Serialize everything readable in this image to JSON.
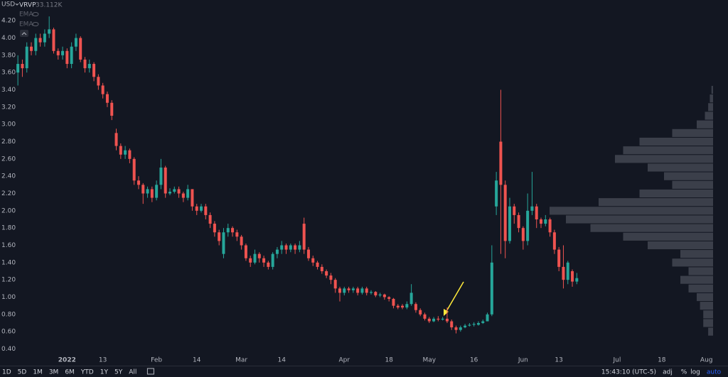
{
  "chart_data": {
    "type": "candlestick",
    "currency": "USD",
    "indicators": [
      {
        "name": "VRVP",
        "value_label": "33.112K"
      },
      {
        "name": "EMA"
      },
      {
        "name": "EMA"
      }
    ],
    "up_color": "#26a69a",
    "down_color": "#ef5350",
    "open": [
      3.6,
      3.7,
      3.65,
      3.9,
      3.85,
      4.0,
      3.95,
      4.05,
      4.1,
      3.85,
      3.8,
      3.85,
      3.7,
      3.9,
      4.0,
      3.75,
      3.65,
      3.7,
      3.55,
      3.45,
      3.35,
      3.25,
      2.9,
      2.75,
      2.65,
      2.7,
      2.6,
      2.35,
      2.3,
      2.2,
      2.25,
      2.15,
      2.3,
      2.5,
      2.2,
      2.22,
      2.25,
      2.2,
      2.15,
      2.25,
      2.05,
      2.0,
      2.05,
      1.95,
      1.85,
      1.75,
      1.5,
      1.75,
      1.8,
      1.75,
      1.7,
      1.6,
      1.45,
      1.4,
      1.5,
      1.45,
      1.4,
      1.35,
      1.5,
      1.55,
      1.6,
      1.55,
      1.6,
      1.55,
      1.85,
      1.55,
      1.45,
      1.4,
      1.35,
      1.3,
      1.25,
      1.2,
      1.1,
      1.05,
      1.1,
      1.08,
      1.1,
      1.05,
      1.1,
      1.05,
      1.06,
      1.02,
      1.03,
      1.0,
      0.98,
      0.9,
      0.9,
      0.88,
      0.92,
      0.92,
      0.85,
      0.8,
      0.75,
      0.72,
      0.75,
      0.74,
      0.75,
      0.72,
      0.65,
      0.62,
      0.65,
      0.67,
      0.68,
      0.68,
      0.7,
      0.72,
      0.8,
      2.05,
      2.8,
      2.3,
      1.65,
      2.05,
      1.95,
      1.8,
      1.65,
      2.0,
      2.05,
      1.9,
      1.85,
      1.9,
      1.75,
      1.55,
      1.35,
      1.2,
      1.3,
      1.18
    ],
    "high": [
      3.8,
      3.75,
      3.95,
      3.95,
      4.05,
      4.05,
      4.1,
      4.25,
      4.12,
      3.88,
      3.9,
      3.88,
      3.95,
      4.05,
      4.02,
      3.78,
      3.75,
      3.72,
      3.58,
      3.48,
      3.38,
      3.28,
      2.95,
      2.78,
      2.75,
      2.72,
      2.62,
      2.4,
      2.32,
      2.28,
      2.28,
      2.35,
      2.6,
      2.52,
      2.26,
      2.28,
      2.28,
      2.22,
      2.3,
      2.25,
      2.08,
      2.08,
      2.08,
      1.98,
      1.88,
      1.78,
      1.8,
      1.85,
      1.82,
      1.78,
      1.72,
      1.62,
      1.48,
      1.55,
      1.52,
      1.48,
      1.42,
      1.52,
      1.58,
      1.65,
      1.62,
      1.62,
      1.62,
      1.65,
      1.92,
      1.58,
      1.48,
      1.42,
      1.38,
      1.32,
      1.28,
      1.22,
      1.12,
      1.12,
      1.12,
      1.12,
      1.12,
      1.12,
      1.12,
      1.08,
      1.07,
      1.05,
      1.04,
      1.01,
      0.99,
      0.92,
      0.92,
      0.95,
      1.15,
      0.94,
      0.87,
      0.82,
      0.77,
      0.77,
      0.78,
      0.77,
      0.88,
      0.74,
      0.67,
      0.67,
      0.69,
      0.7,
      0.71,
      0.72,
      0.74,
      0.82,
      1.6,
      2.45,
      3.4,
      2.35,
      2.15,
      2.08,
      1.98,
      1.82,
      2.2,
      2.45,
      2.08,
      1.92,
      1.95,
      1.92,
      1.78,
      1.58,
      1.6,
      1.42,
      1.32,
      1.28
    ],
    "low": [
      3.45,
      3.55,
      3.6,
      3.8,
      3.8,
      3.9,
      3.9,
      4.0,
      3.82,
      3.75,
      3.75,
      3.65,
      3.65,
      3.85,
      3.72,
      3.6,
      3.6,
      3.5,
      3.4,
      3.3,
      3.2,
      3.05,
      2.7,
      2.6,
      2.6,
      2.55,
      2.3,
      2.25,
      2.08,
      2.15,
      2.1,
      2.12,
      2.25,
      2.15,
      2.18,
      2.2,
      2.15,
      2.1,
      2.12,
      2.0,
      1.95,
      1.98,
      1.9,
      1.8,
      1.7,
      1.6,
      1.45,
      1.7,
      1.7,
      1.65,
      1.55,
      1.42,
      1.35,
      1.38,
      1.4,
      1.35,
      1.32,
      1.32,
      1.45,
      1.5,
      1.5,
      1.52,
      1.5,
      1.52,
      1.5,
      1.42,
      1.36,
      1.32,
      1.27,
      1.22,
      1.15,
      1.05,
      0.95,
      1.02,
      1.05,
      1.05,
      1.02,
      1.03,
      1.02,
      1.03,
      1.0,
      1.0,
      0.97,
      0.95,
      0.87,
      0.86,
      0.86,
      0.86,
      0.9,
      0.82,
      0.78,
      0.73,
      0.7,
      0.71,
      0.72,
      0.73,
      0.7,
      0.62,
      0.58,
      0.6,
      0.64,
      0.66,
      0.66,
      0.67,
      0.69,
      0.72,
      0.78,
      1.95,
      1.5,
      1.45,
      1.62,
      1.85,
      1.75,
      1.55,
      1.6,
      1.95,
      1.8,
      1.8,
      1.82,
      1.7,
      1.5,
      1.3,
      1.1,
      1.15,
      1.12,
      1.15
    ],
    "close": [
      3.7,
      3.65,
      3.9,
      3.85,
      4.0,
      3.95,
      4.05,
      4.1,
      3.85,
      3.8,
      3.85,
      3.7,
      3.9,
      4.0,
      3.75,
      3.65,
      3.7,
      3.55,
      3.45,
      3.35,
      3.25,
      3.1,
      2.75,
      2.65,
      2.7,
      2.6,
      2.35,
      2.3,
      2.2,
      2.25,
      2.15,
      2.3,
      2.5,
      2.2,
      2.22,
      2.25,
      2.2,
      2.15,
      2.25,
      2.05,
      2.0,
      2.05,
      1.95,
      1.85,
      1.75,
      1.65,
      1.75,
      1.8,
      1.75,
      1.7,
      1.6,
      1.45,
      1.4,
      1.5,
      1.45,
      1.4,
      1.35,
      1.5,
      1.55,
      1.6,
      1.55,
      1.6,
      1.55,
      1.6,
      1.55,
      1.45,
      1.4,
      1.35,
      1.3,
      1.25,
      1.2,
      1.1,
      1.05,
      1.1,
      1.08,
      1.1,
      1.05,
      1.1,
      1.05,
      1.06,
      1.02,
      1.03,
      1.0,
      0.98,
      0.9,
      0.88,
      0.88,
      0.92,
      1.05,
      0.85,
      0.8,
      0.75,
      0.72,
      0.75,
      0.74,
      0.75,
      0.72,
      0.65,
      0.62,
      0.65,
      0.67,
      0.68,
      0.69,
      0.7,
      0.72,
      0.8,
      1.4,
      2.35,
      2.3,
      1.65,
      2.05,
      1.95,
      1.8,
      1.65,
      2.0,
      2.05,
      1.9,
      1.85,
      1.9,
      1.75,
      1.55,
      1.35,
      1.2,
      1.4,
      1.18,
      1.22
    ],
    "xlim": [
      -4,
      155
    ],
    "xticks": [
      {
        "value": 11,
        "label": "2022"
      },
      {
        "value": 19,
        "label": "13"
      },
      {
        "value": 31,
        "label": "Feb"
      },
      {
        "value": 40,
        "label": "14"
      },
      {
        "value": 50,
        "label": "Mar"
      },
      {
        "value": 59,
        "label": "14"
      },
      {
        "value": 73,
        "label": "Apr"
      },
      {
        "value": 83,
        "label": "18"
      },
      {
        "value": 92,
        "label": "May"
      },
      {
        "value": 102,
        "label": "16"
      },
      {
        "value": 113,
        "label": "Jun"
      },
      {
        "value": 121,
        "label": "13"
      },
      {
        "value": 134,
        "label": "Jul"
      },
      {
        "value": 144,
        "label": "18"
      },
      {
        "value": 154,
        "label": "Aug"
      }
    ],
    "ylim": [
      0.33,
      4.44
    ],
    "yticks": [
      {
        "value": 0.4,
        "label": "0.40"
      },
      {
        "value": 0.6,
        "label": "0.60"
      },
      {
        "value": 0.8,
        "label": "0.80"
      },
      {
        "value": 1.0,
        "label": "1.00"
      },
      {
        "value": 1.2,
        "label": "1.20"
      },
      {
        "value": 1.4,
        "label": "1.40"
      },
      {
        "value": 1.6,
        "label": "1.60"
      },
      {
        "value": 1.8,
        "label": "1.80"
      },
      {
        "value": 2.0,
        "label": "2.00"
      },
      {
        "value": 2.2,
        "label": "2.20"
      },
      {
        "value": 2.4,
        "label": "2.40"
      },
      {
        "value": 2.6,
        "label": "2.60"
      },
      {
        "value": 2.8,
        "label": "2.80"
      },
      {
        "value": 3.0,
        "label": "3.00"
      },
      {
        "value": 3.2,
        "label": "3.20"
      },
      {
        "value": 3.4,
        "label": "3.40"
      },
      {
        "value": 3.6,
        "label": "3.60"
      },
      {
        "value": 3.8,
        "label": "3.80"
      },
      {
        "value": 4.0,
        "label": "4.00"
      },
      {
        "value": 4.2,
        "label": "4.20"
      }
    ],
    "grid": false,
    "volume_profile": {
      "color": "#5d606b",
      "levels": [
        0.6,
        0.7,
        0.8,
        0.9,
        1.0,
        1.1,
        1.2,
        1.3,
        1.4,
        1.5,
        1.6,
        1.7,
        1.8,
        1.9,
        2.0,
        2.1,
        2.2,
        2.3,
        2.4,
        2.5,
        2.6,
        2.7,
        2.8,
        2.9,
        3.0,
        3.1,
        3.2,
        3.3,
        3.4
      ],
      "volumes": [
        3,
        6,
        6,
        8,
        10,
        15,
        20,
        15,
        25,
        20,
        40,
        55,
        75,
        90,
        100,
        70,
        45,
        25,
        30,
        40,
        60,
        55,
        45,
        25,
        10,
        5,
        3,
        2,
        1
      ],
      "vlim": [
        0,
        100
      ]
    }
  },
  "toolbar": {
    "ranges": [
      "1D",
      "5D",
      "1M",
      "3M",
      "6M",
      "YTD",
      "1Y",
      "5Y",
      "All"
    ],
    "clock": "15:43:10 (UTC-5)",
    "options": [
      "adj",
      "%",
      "log",
      "auto"
    ]
  }
}
